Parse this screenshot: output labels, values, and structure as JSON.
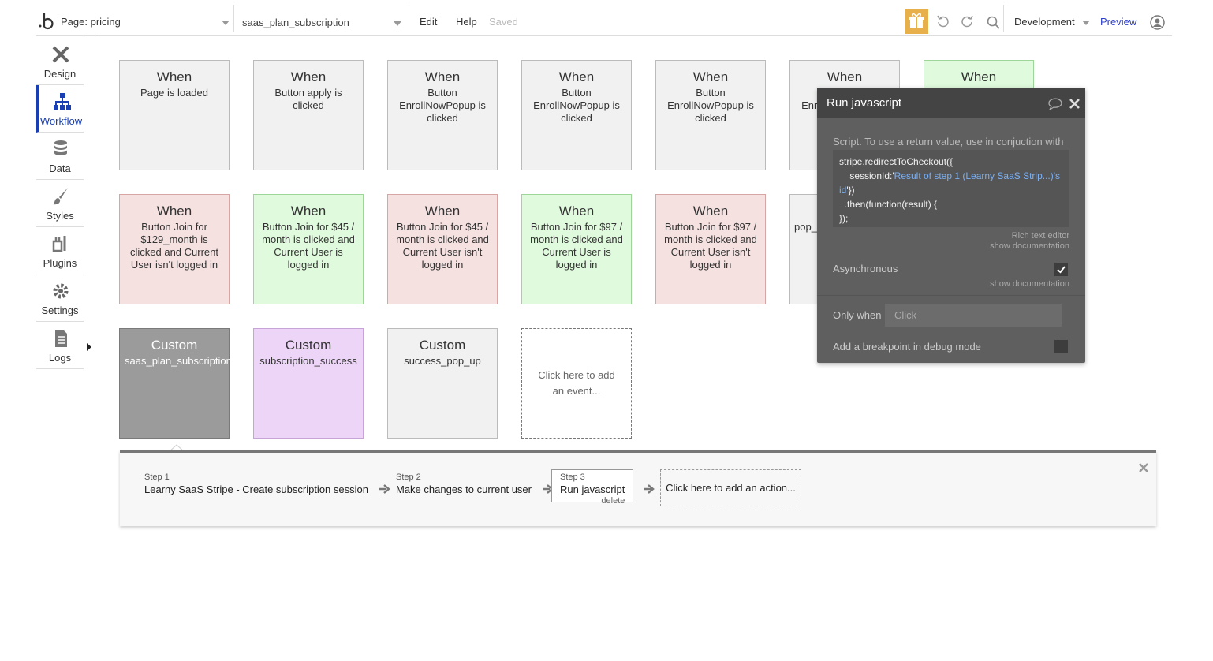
{
  "topbar": {
    "page": "Page: pricing",
    "workflow": "saas_plan_subscription",
    "menu": [
      "Edit",
      "Help"
    ],
    "status": "Saved",
    "environment": "Development",
    "preview": "Preview"
  },
  "sidebar": {
    "items": [
      "Design",
      "Workflow",
      "Data",
      "Styles",
      "Plugins",
      "Settings",
      "Logs"
    ],
    "active": 1
  },
  "events": {
    "rows": [
      [
        {
          "title": "When",
          "detail": "Page is loaded",
          "color": "#f0f1f0"
        },
        {
          "title": "When",
          "detail": "Button apply is clicked",
          "color": "#f0f1f0"
        },
        {
          "title": "When",
          "detail": "Button EnrollNowPopup is clicked",
          "color": "#f0f1f0"
        },
        {
          "title": "When",
          "detail": "Button EnrollNowPopup is clicked",
          "color": "#f0f1f0"
        },
        {
          "title": "When",
          "detail": "Button EnrollNowPopup is clicked",
          "color": "#f0f1f0"
        },
        {
          "title": "When",
          "detail": "Button EnrollNowPopup is clicked",
          "color": "#f0f1f0"
        },
        {
          "title": "When",
          "color": "#e0fadd"
        }
      ],
      [
        {
          "title": "When",
          "detail": "Button Join for $129_month is clicked and Current User isn't logged in",
          "color": "#f6e1e1"
        },
        {
          "title": "When",
          "detail": "Button Join for $45 / month is clicked and Current User is logged in",
          "color": "#e0fadd"
        },
        {
          "title": "When",
          "detail": "Button Join for $45 / month is clicked and Current User isn't logged in",
          "color": "#f6e1e1"
        },
        {
          "title": "When",
          "detail": "Button Join for $97 / month is clicked and Current User is logged in",
          "color": "#e0fadd"
        },
        {
          "title": "When",
          "detail": "Button Join for $97 / month is clicked and Current User isn't logged in",
          "color": "#f6e1e1"
        },
        {
          "detail": "pop_",
          "color": "#f0f1f0"
        }
      ],
      [
        {
          "title": "Custom",
          "detail": "saas_plan_subscription",
          "color": "#9b9b9b",
          "selected": true
        },
        {
          "title": "Custom",
          "detail": "subscription_success",
          "color": "#ecd5f7"
        },
        {
          "title": "Custom",
          "detail": "success_pop_up",
          "color": "#f0f1f0"
        }
      ]
    ],
    "add_event": "Click here to add an event..."
  },
  "steps": {
    "items": [
      {
        "label": "Step 1",
        "name": "Learny SaaS Stripe - Create subscription session"
      },
      {
        "label": "Step 2",
        "name": "Make changes to current user"
      },
      {
        "label": "Step 3",
        "name": "Run javascript"
      }
    ],
    "selected": 2,
    "delete": "delete",
    "add_action": "Click here to add an action..."
  },
  "popup": {
    "title": "Run javascript",
    "script_label": "Script. To use a return value, use in conjuction with",
    "code_lines": [
      [
        {
          "text": "stripe.redirectToCheckout({"
        }
      ],
      [
        {
          "text": "    sessionId:'"
        },
        {
          "text": "Result of step 1 (Learny SaaS Strip...)'s",
          "dynamic": true
        }
      ],
      [
        {
          "text": "id",
          "dynamic": true
        },
        {
          "text": "'})"
        }
      ],
      [
        {
          "text": "  .then(function(result) {"
        }
      ],
      [
        {
          "text": "});"
        }
      ]
    ],
    "rich_text": "Rich text editor",
    "show_doc": "show documentation",
    "async_label": "Asynchronous",
    "async_checked": true,
    "async_doc": "show documentation",
    "only_when": "Only when",
    "only_when_placeholder": "Click",
    "breakpoint": "Add a breakpoint in debug mode",
    "breakpoint_checked": false
  }
}
